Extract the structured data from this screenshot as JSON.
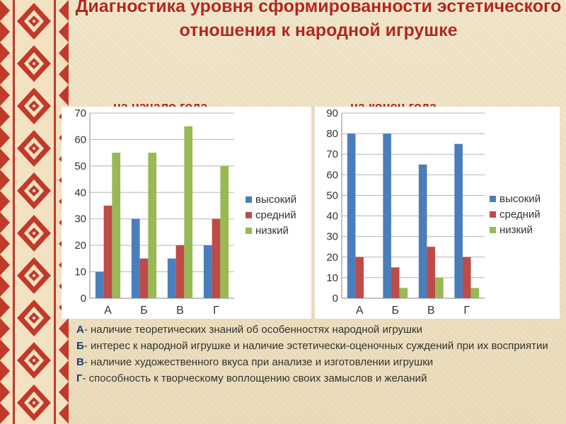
{
  "title": "Диагностика уровня сформированности эстетического отношения к народной игрушке",
  "subtitles": [
    "на начало года",
    "на конец года"
  ],
  "legend": [
    "высокий",
    "средний",
    "низкий"
  ],
  "colors": {
    "high": "#4a7ebb",
    "medium": "#be4b48",
    "low": "#98b954",
    "title": "#b3261e"
  },
  "chart_data": [
    {
      "type": "bar",
      "title": "на начало года",
      "categories": [
        "А",
        "Б",
        "В",
        "Г"
      ],
      "series": [
        {
          "name": "высокий",
          "values": [
            10,
            30,
            15,
            20
          ]
        },
        {
          "name": "средний",
          "values": [
            35,
            15,
            20,
            30
          ]
        },
        {
          "name": "низкий",
          "values": [
            55,
            55,
            65,
            50
          ]
        }
      ],
      "ylim": [
        0,
        70
      ],
      "yticks": [
        0,
        10,
        20,
        30,
        40,
        50,
        60,
        70
      ],
      "grid": true,
      "legend_position": "right"
    },
    {
      "type": "bar",
      "title": "на конец года",
      "categories": [
        "А",
        "Б",
        "В",
        "Г"
      ],
      "series": [
        {
          "name": "высокий",
          "values": [
            80,
            80,
            65,
            75
          ]
        },
        {
          "name": "средний",
          "values": [
            20,
            15,
            25,
            20
          ]
        },
        {
          "name": "низкий",
          "values": [
            0,
            5,
            10,
            5
          ]
        }
      ],
      "ylim": [
        0,
        90
      ],
      "yticks": [
        0,
        10,
        20,
        30,
        40,
        50,
        60,
        70,
        80,
        90
      ],
      "grid": true,
      "legend_position": "right"
    }
  ],
  "notes": [
    {
      "key": "А",
      "text": "- наличие теоретических знаний об особенностях народной игрушки"
    },
    {
      "key": "Б",
      "text": "- интерес к народной игрушке и наличие эстетически-оценочных суждений при их восприятии"
    },
    {
      "key": "В",
      "text": "- наличие художественного вкуса при анализе и изготовлении игрушки"
    },
    {
      "key": "Г",
      "text": "- способность к творческому воплощению своих замыслов и желаний"
    }
  ]
}
